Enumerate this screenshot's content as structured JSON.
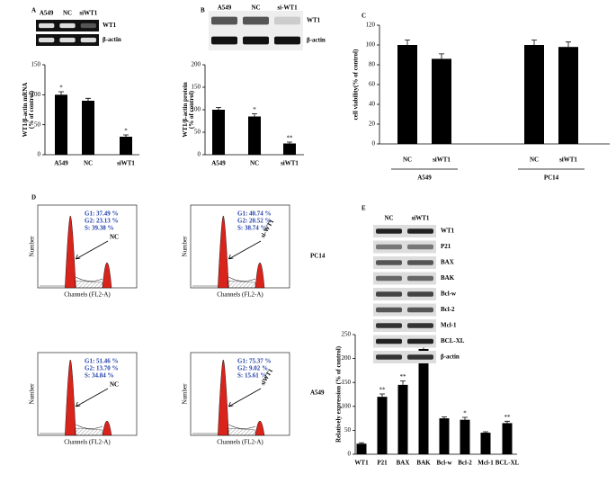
{
  "chart_data": [
    {
      "type": "bar",
      "panel": "A",
      "ylabel": [
        "WT1/β-actin mRNA",
        "(% of control)"
      ],
      "categories": [
        "A549",
        "NC",
        "siWT1"
      ],
      "values": [
        100,
        90,
        30
      ],
      "errors": [
        5,
        4,
        3
      ],
      "stars": [
        "*",
        null,
        "*"
      ],
      "color": "#000000",
      "ylim": [
        0,
        150
      ],
      "yticks": [
        0,
        50,
        100,
        150
      ]
    },
    {
      "type": "bar",
      "panel": "B",
      "ylabel": [
        "WT1/β-actin protein",
        "(% of control)"
      ],
      "categories": [
        "A549",
        "NC",
        "siWT1"
      ],
      "values": [
        100,
        85,
        25
      ],
      "errors": [
        5,
        6,
        3
      ],
      "stars": [
        null,
        "*",
        "**"
      ],
      "color": "#000000",
      "ylim": [
        0,
        200
      ],
      "yticks": [
        0,
        50,
        100,
        150,
        200
      ]
    },
    {
      "type": "bar",
      "panel": "C",
      "ylabel": [
        "cell viability(% of control)"
      ],
      "categories": [
        "NC",
        "siWT1",
        "NC",
        "siWT1"
      ],
      "groups": [
        "A549",
        "PC14"
      ],
      "values": [
        100,
        86,
        100,
        98
      ],
      "errors": [
        5,
        5,
        5,
        5
      ],
      "color": "#000000",
      "ylim": [
        0,
        120
      ],
      "yticks": [
        0,
        20,
        40,
        60,
        80,
        100,
        120
      ]
    },
    {
      "type": "bar",
      "panel": "E",
      "ylabel": [
        "Relatively expression (% of control)"
      ],
      "categories": [
        "WT1",
        "P21",
        "BAX",
        "BAK",
        "Bcl-w",
        "Bcl-2",
        "Mcl-1",
        "BCL-XL"
      ],
      "values": [
        22,
        120,
        145,
        220,
        75,
        72,
        45,
        65
      ],
      "errors": [
        2,
        6,
        8,
        10,
        3,
        5,
        2,
        4
      ],
      "stars": [
        null,
        "**",
        "**",
        "*",
        null,
        "*",
        null,
        "**"
      ],
      "color": "#000000",
      "ylim": [
        0,
        250
      ],
      "yticks": [
        0,
        50,
        100,
        150,
        200,
        250
      ]
    }
  ],
  "blots": {
    "A": {
      "lanes": [
        "A549",
        "NC",
        "siWT1"
      ],
      "rows": [
        "WT1",
        "β-actin"
      ]
    },
    "B": {
      "lanes": [
        "A549",
        "NC",
        "si-WT1"
      ],
      "rows": [
        "WT1",
        "β-actin"
      ]
    },
    "E": {
      "lanes": [
        "NC",
        "siWT1"
      ],
      "rows": [
        "WT1",
        "P21",
        "BAX",
        "BAK",
        "Bcl-w",
        "Bcl-2",
        "Mcl-1",
        "BCL-XL",
        "β-actin"
      ]
    }
  },
  "flow": {
    "panel": "D",
    "x_label": "Channels (FL2-A)",
    "y_label": "Number",
    "rows": [
      {
        "cell_line": "PC14",
        "panels": [
          {
            "arrow": "NC",
            "stats": [
              "G1: 37.49 %",
              "G2: 23.13 %",
              "S: 39.38 %"
            ]
          },
          {
            "arrow": "si-WT1",
            "stats": [
              "G1: 40.74 %",
              "G2: 20.52 %",
              "S: 38.74 %"
            ]
          }
        ]
      },
      {
        "cell_line": "A549",
        "panels": [
          {
            "arrow": "NC",
            "stats": [
              "G1: 51.46 %",
              "G2: 13.70 %",
              "S: 34.84 %"
            ]
          },
          {
            "arrow": "siWT1",
            "stats": [
              "G1: 75.37 %",
              "G2: 9.02 %",
              "S: 15.61 %"
            ]
          }
        ]
      }
    ]
  }
}
